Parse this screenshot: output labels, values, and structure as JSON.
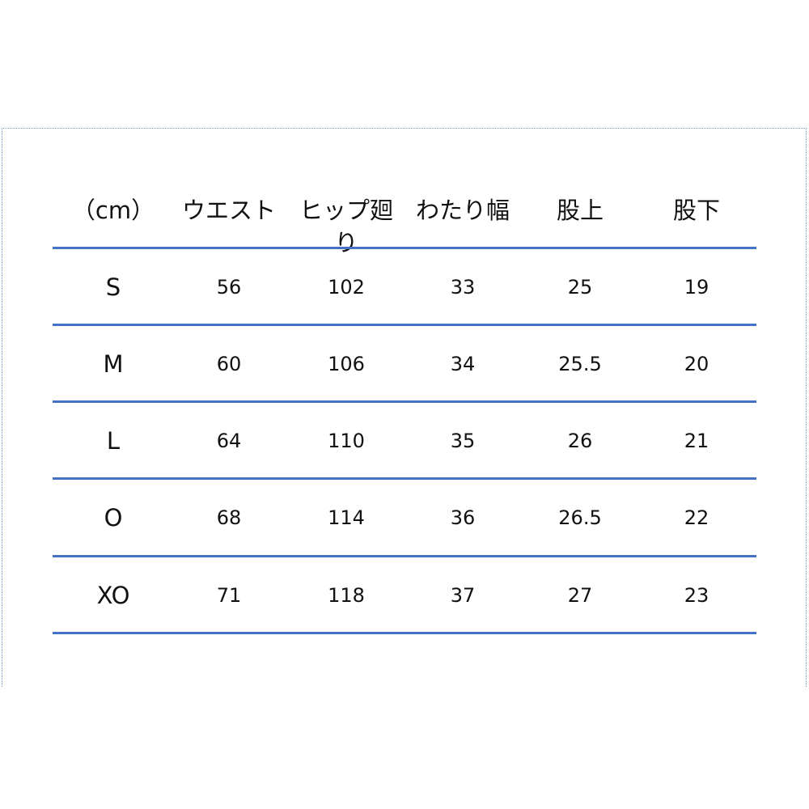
{
  "table": {
    "headers": [
      "（cm）",
      "ウエスト",
      "ヒップ廻り",
      "わたり幅",
      "股上",
      "股下"
    ],
    "rows": [
      [
        "S",
        "56",
        "102",
        "33",
        "25",
        "19"
      ],
      [
        "M",
        "60",
        "106",
        "34",
        "25.5",
        "20"
      ],
      [
        "L",
        "64",
        "110",
        "35",
        "26",
        "21"
      ],
      [
        "O",
        "68",
        "114",
        "36",
        "26.5",
        "22"
      ],
      [
        "XO",
        "71",
        "118",
        "37",
        "27",
        "23"
      ]
    ]
  },
  "colors": {
    "rule": "#4472c4"
  }
}
